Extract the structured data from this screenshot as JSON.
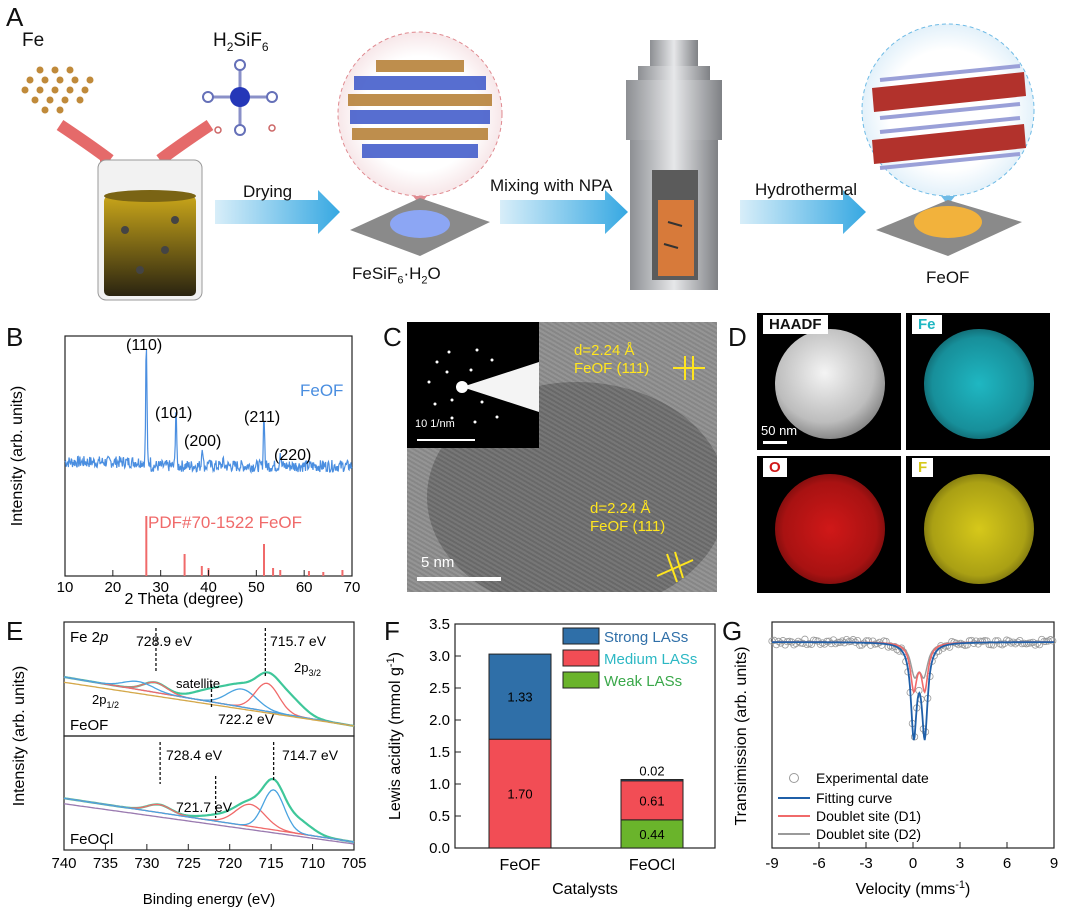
{
  "panel_a": {
    "label": "A",
    "fe": "Fe",
    "acid": "H",
    "acid_sub1": "2",
    "acid_mid": "SiF",
    "acid_sub2": "6",
    "drying": "Drying",
    "mixing": "Mixing with NPA",
    "hydrothermal": "Hydrothermal",
    "inter_main": "FeSiF",
    "inter_sub1": "6",
    "inter_mid": "·H",
    "inter_sub2": "2",
    "inter_end": "O",
    "product": "FeOF"
  },
  "panel_b": {
    "label": "B",
    "ylabel": "Intensity (arb. units)",
    "xlabel": "2 Theta (degree)",
    "legend_sample": "FeOF",
    "legend_ref": "PDF#70-1522 FeOF",
    "peaks": [
      "(110)",
      "(101)",
      "(200)",
      "(211)",
      "(220)"
    ],
    "xticks": [
      "10",
      "20",
      "30",
      "40",
      "50",
      "60",
      "70"
    ]
  },
  "panel_c": {
    "label": "C",
    "d1": "d=2.24 Å",
    "hkl1": "FeOF (111)",
    "d2": "d=2.24 Å",
    "hkl2": "FeOF (111)",
    "saed_scale": "10 1/nm",
    "scale": "5 nm"
  },
  "panel_d": {
    "label": "D",
    "haadf": "HAADF",
    "fe": "Fe",
    "o": "O",
    "f": "F",
    "scale": "50 nm",
    "colors": {
      "fe": "#1fb7c2",
      "o": "#d01818",
      "f": "#d6c81a"
    }
  },
  "panel_e": {
    "label": "E",
    "title": "Fe 2",
    "title_p": "p",
    "ylabel": "Intensity (arb. units)",
    "xlabel": "Binding energy (eV)",
    "top_sample": "FeOF",
    "bottom_sample": "FeOCl",
    "ann": {
      "a7289": "728.9 eV",
      "a7157": "715.7 eV",
      "sat": "satellite",
      "a7222": "722.2 eV",
      "p12": "2p",
      "p12sub": "1/2",
      "p32": "2p",
      "p32sub": "3/2",
      "a7284": "728.4 eV",
      "a7147": "714.7 eV",
      "a7217": "721.7 eV"
    },
    "xticks": [
      "740",
      "735",
      "730",
      "725",
      "720",
      "715",
      "710",
      "705"
    ]
  },
  "panel_f": {
    "label": "F",
    "ylabel": "Lewis acidity (mmol g",
    "ylabel_sup": "-1",
    "ylabel_end": ")",
    "xlabel": "Catalysts",
    "legend": [
      "Strong LASs",
      "Medium LASs",
      "Weak LASs"
    ],
    "legend_colors": {
      "strong": "#2f6fa8",
      "medium": "#f24d55",
      "weak": "#6ab42b"
    },
    "yticks": [
      "0.0",
      "0.5",
      "1.0",
      "1.5",
      "2.0",
      "2.5",
      "3.0",
      "3.5"
    ]
  },
  "chart_data": [
    {
      "type": "bar",
      "panel": "F",
      "categories": [
        "FeOF",
        "FeOCl"
      ],
      "series": [
        {
          "name": "Weak LASs",
          "values": [
            0.0,
            0.44
          ],
          "labels": [
            "",
            "0.44"
          ]
        },
        {
          "name": "Medium LASs",
          "values": [
            1.7,
            0.61
          ],
          "labels": [
            "1.70",
            "0.61"
          ]
        },
        {
          "name": "Strong LASs",
          "values": [
            1.33,
            0.02
          ],
          "labels": [
            "1.33",
            "0.02"
          ]
        }
      ],
      "stacked": true,
      "xlabel": "Catalysts",
      "ylabel": "Lewis acidity (mmol g-1)",
      "ylim": [
        0,
        3.5
      ],
      "legend": "top-right"
    },
    {
      "type": "line",
      "panel": "G",
      "xlabel": "Velocity (mms-1)",
      "ylabel": "Transimission (arb. units)",
      "xlim": [
        -9,
        9
      ],
      "series": [
        {
          "name": "Experimental date"
        },
        {
          "name": "Fitting curve"
        },
        {
          "name": "Doublet site (D1)"
        },
        {
          "name": "Doublet site (D2)"
        }
      ]
    }
  ],
  "panel_g": {
    "label": "G",
    "ylabel": "Transimission (arb. units)",
    "xlabel": "Velocity (mms",
    "xlabel_sup": "-1",
    "xlabel_end": ")",
    "legend": [
      "Experimental date",
      "Fitting curve",
      "Doublet site (D1)",
      "Doublet site (D2)"
    ],
    "xticks": [
      "-9",
      "-6",
      "-3",
      "0",
      "3",
      "6",
      "9"
    ]
  }
}
